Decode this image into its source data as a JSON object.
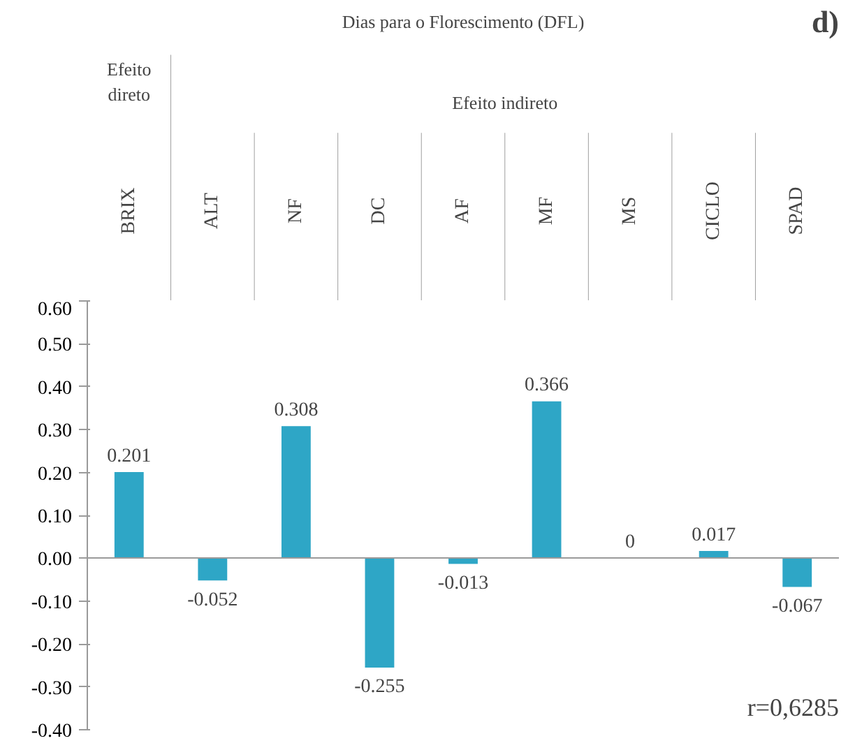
{
  "chart_data": {
    "type": "bar",
    "title": "Dias para o Florescimento (DFL)",
    "categories": [
      "BRIX",
      "ALT",
      "NF",
      "DC",
      "AF",
      "MF",
      "MS",
      "CICLO",
      "SPAD"
    ],
    "values": [
      0.201,
      -0.052,
      0.308,
      -0.255,
      -0.013,
      0.366,
      0,
      0.017,
      -0.067
    ],
    "color": "#2ea6c6",
    "ylim": [
      -0.4,
      0.6
    ],
    "yticks": [
      {
        "value": -0.4,
        "label": "-0.40"
      },
      {
        "value": -0.3,
        "label": "-0.30"
      },
      {
        "value": -0.2,
        "label": "-0.20"
      },
      {
        "value": -0.1,
        "label": "-0.10"
      },
      {
        "value": 0,
        "label": "0.00"
      },
      {
        "value": 0.1,
        "label": "0.10"
      },
      {
        "value": 0.2,
        "label": "0.20"
      },
      {
        "value": 0.3,
        "label": "0.30"
      },
      {
        "value": 0.4,
        "label": "0.40"
      },
      {
        "value": 0.5,
        "label": "0.50"
      },
      {
        "value": 0.6,
        "label": "0.60"
      }
    ],
    "data_labels": true,
    "annotations": [
      "d)",
      "Efeito direto",
      "Efeito indireto",
      "r=0,6285"
    ]
  }
}
